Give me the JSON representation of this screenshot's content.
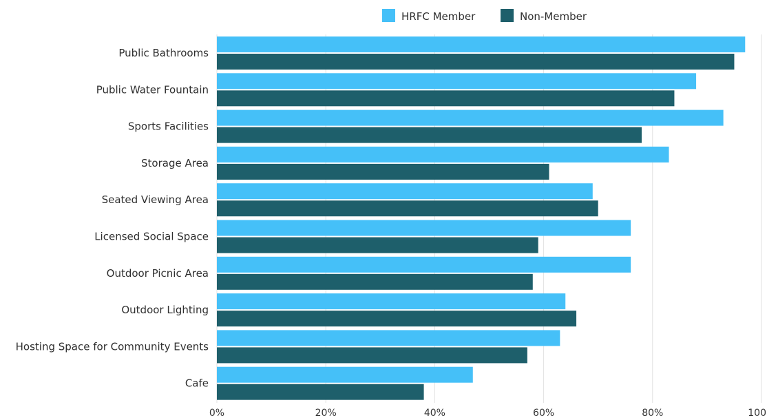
{
  "chart_data": {
    "type": "bar",
    "orientation": "horizontal",
    "categories": [
      "Public Bathrooms",
      "Public Water Fountain",
      "Sports Facilities",
      "Storage Area",
      "Seated Viewing Area",
      "Licensed Social Space",
      "Outdoor Picnic Area",
      "Outdoor Lighting",
      "Hosting Space for Community Events",
      "Cafe"
    ],
    "series": [
      {
        "name": "HRFC Member",
        "color": "#45c0f8",
        "values": [
          97,
          88,
          93,
          83,
          69,
          76,
          76,
          64,
          63,
          47
        ]
      },
      {
        "name": "Non-Member",
        "color": "#1e5f6b",
        "values": [
          95,
          84,
          78,
          61,
          70,
          59,
          58,
          66,
          57,
          38
        ]
      }
    ],
    "xlim": [
      0,
      100
    ],
    "x_ticks": [
      0,
      20,
      40,
      60,
      80,
      100
    ],
    "x_tick_labels": [
      "0%",
      "20%",
      "40%",
      "60%",
      "80%",
      "100"
    ],
    "grid": true,
    "legend_position": "top"
  }
}
